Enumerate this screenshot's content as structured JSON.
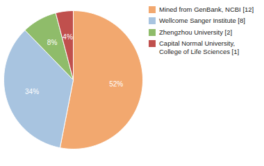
{
  "chart_data": {
    "type": "pie",
    "categories": [
      "Mined from GenBank, NCBI [12]",
      "Wellcome Sanger Institute [8]",
      "Zhengzhou University [2]",
      "Capital Normal University,\nCollege of Life Sciences [1]"
    ],
    "values": [
      52,
      34,
      8,
      4
    ],
    "value_labels": [
      "52%",
      "34%",
      "8%",
      "4%"
    ],
    "colors": [
      "#F2A86F",
      "#A8C4E0",
      "#8FBC6A",
      "#C0504D"
    ],
    "data_labels": true,
    "legend": "right"
  }
}
